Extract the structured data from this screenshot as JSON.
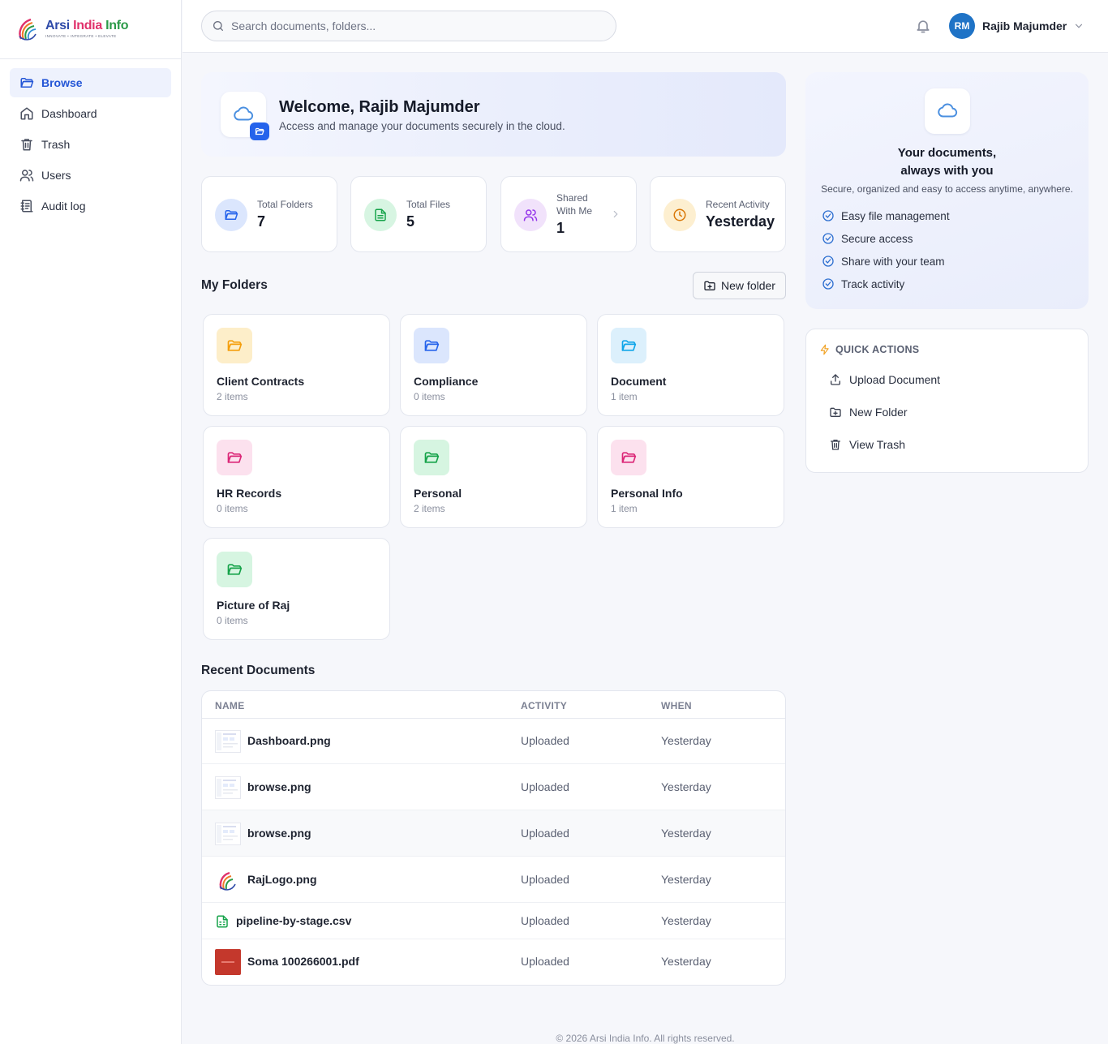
{
  "brand": {
    "name_part1": "Arsi ",
    "name_part2": "India ",
    "name_part3": "Info",
    "tagline": "INNOVATE • INTEGRATE • ELEVATE"
  },
  "sidebar": {
    "items": [
      {
        "label": "Browse",
        "icon": "folder-open-icon",
        "active": true
      },
      {
        "label": "Dashboard",
        "icon": "home-icon"
      },
      {
        "label": "Trash",
        "icon": "trash-icon"
      },
      {
        "label": "Users",
        "icon": "users-icon"
      },
      {
        "label": "Audit log",
        "icon": "audit-log-icon"
      }
    ]
  },
  "header": {
    "search_placeholder": "Search documents, folders...",
    "user_initials": "RM",
    "user_name": "Rajib Majumder"
  },
  "welcome": {
    "title": "Welcome, Rajib Majumder",
    "subtitle": "Access and manage your documents securely in the cloud."
  },
  "stats": [
    {
      "label": "Total Folders",
      "value": "7",
      "icon": "folder-icon",
      "color": "#2563eb"
    },
    {
      "label": "Total Files",
      "value": "5",
      "icon": "file-text-icon",
      "color": "#16a34a"
    },
    {
      "label": "Shared With Me",
      "value": "1",
      "icon": "users-icon",
      "color": "#9333ea"
    },
    {
      "label": "Recent Activity",
      "value": "Yesterday",
      "icon": "clock-icon",
      "color": "#d97706"
    }
  ],
  "folders_section": {
    "title": "My Folders",
    "new_folder_label": "New folder",
    "folders": [
      {
        "name": "Client Contracts",
        "count": "2 items",
        "color": "#f59e0b"
      },
      {
        "name": "Compliance",
        "count": "0 items",
        "color": "#2563eb"
      },
      {
        "name": "Document",
        "count": "1 item",
        "color": "#0ea5e9"
      },
      {
        "name": "HR Records",
        "count": "0 items",
        "color": "#db2777"
      },
      {
        "name": "Personal",
        "count": "2 items",
        "color": "#16a34a"
      },
      {
        "name": "Personal Info",
        "count": "1 item",
        "color": "#db2777"
      },
      {
        "name": "Picture of Raj",
        "count": "0 items",
        "color": "#16a34a"
      }
    ]
  },
  "recent_docs": {
    "title": "Recent Documents",
    "columns": [
      "NAME",
      "ACTIVITY",
      "WHEN"
    ],
    "rows": [
      {
        "name": "Dashboard.png",
        "activity": "Uploaded",
        "when": "Yesterday",
        "thumb": "screenshot"
      },
      {
        "name": "browse.png",
        "activity": "Uploaded",
        "when": "Yesterday",
        "thumb": "screenshot"
      },
      {
        "name": "browse.png",
        "activity": "Uploaded",
        "when": "Yesterday",
        "thumb": "screenshot"
      },
      {
        "name": "RajLogo.png",
        "activity": "Uploaded",
        "when": "Yesterday",
        "thumb": "logo"
      },
      {
        "name": "pipeline-by-stage.csv",
        "activity": "Uploaded",
        "when": "Yesterday",
        "thumb": "csv"
      },
      {
        "name": "Soma 100266001.pdf",
        "activity": "Uploaded",
        "when": "Yesterday",
        "thumb": "pdf"
      }
    ]
  },
  "promo": {
    "title_line1": "Your documents,",
    "title_line2": "always with you",
    "subtitle": "Secure, organized and easy to access anytime, anywhere.",
    "features": [
      "Easy file management",
      "Secure access",
      "Share with your team",
      "Track activity"
    ]
  },
  "quick_actions": {
    "title": "QUICK ACTIONS",
    "items": [
      "Upload Document",
      "New Folder",
      "View Trash"
    ]
  },
  "footer": {
    "text": "© 2026 Arsi India Info. All rights reserved."
  },
  "colors": {
    "accent": "#2456d6",
    "avatar": "#1f73c6"
  }
}
